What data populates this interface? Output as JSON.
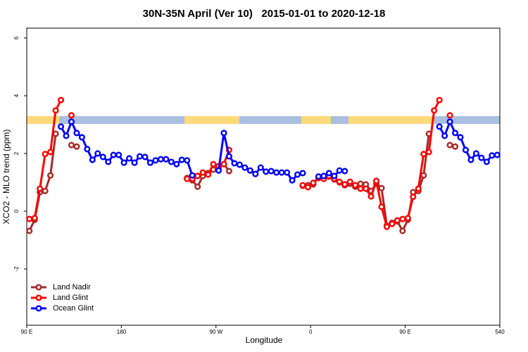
{
  "chart_data": {
    "type": "line",
    "title": "30N-35N April (Ver 10)   2015-01-01 to 2020-12-18",
    "xlabel": "Longitude",
    "ylabel": "XCO2 - MLO trend (ppm)",
    "xlim": [
      90,
      540
    ],
    "ylim": [
      -3.95,
      6.34
    ],
    "xticks": [
      {
        "value": 90,
        "label": "90 E"
      },
      180,
      {
        "value": 270,
        "label": "90 W"
      },
      {
        "value": 360,
        "label": "0"
      },
      {
        "value": 450,
        "label": "90 E"
      },
      540
    ],
    "yticks": [
      -2,
      0,
      2,
      4,
      6
    ],
    "legend": "bottom-left",
    "series": [
      {
        "name": "Land Nadir",
        "color": "#a52a2a",
        "x": [
          92.5,
          97.5,
          102.5,
          107.5,
          112.5,
          117.5,
          122.5,
          132.5,
          137.5,
          240,
          242.5,
          247.5,
          252.5,
          257.5,
          262.5,
          267.5,
          272.5,
          277.5,
          282.5,
          300,
          352.5,
          357.5,
          362.5,
          367.5,
          372.5,
          377.5,
          382.5,
          387.5,
          392.5,
          397.5,
          402.5,
          407.5,
          412.5,
          417.5,
          422.5,
          427.5,
          432.5,
          437.5,
          442.5,
          447.5,
          452.5,
          457.5,
          462.5,
          467.5,
          472.5,
          480,
          492.5,
          497.5
        ],
        "values": [
          -0.68,
          -0.3,
          0.66,
          0.7,
          1.24,
          2.68,
          null,
          2.29,
          2.24,
          null,
          1.15,
          1.07,
          0.85,
          1.22,
          1.32,
          1.44,
          1.51,
          1.63,
          1.39,
          null,
          0.88,
          0.9,
          0.93,
          1.2,
          1.15,
          1.2,
          1.1,
          1.0,
          0.9,
          0.95,
          0.85,
          0.95,
          0.93,
          0.7,
          0.95,
          0.8,
          -0.5,
          -0.4,
          -0.35,
          -0.68,
          -0.3,
          0.66,
          0.7,
          1.24,
          2.68,
          null,
          2.29,
          2.24
        ]
      },
      {
        "name": "Land Glint",
        "color": "#ff0000",
        "x": [
          92.5,
          97.5,
          102.5,
          107.5,
          112.5,
          117.5,
          122.5,
          127.5,
          132.5,
          240,
          242.5,
          247.5,
          252.5,
          257.5,
          262.5,
          267.5,
          272.5,
          277.5,
          282.5,
          300,
          352.5,
          357.5,
          362.5,
          367.5,
          372.5,
          377.5,
          382.5,
          387.5,
          392.5,
          397.5,
          402.5,
          407.5,
          412.5,
          417.5,
          422.5,
          427.5,
          432.5,
          437.5,
          442.5,
          447.5,
          452.5,
          457.5,
          462.5,
          467.5,
          472.5,
          477.5,
          482.5,
          487.5,
          492.5
        ],
        "values": [
          -0.27,
          -0.24,
          0.78,
          1.98,
          2.05,
          3.49,
          3.85,
          null,
          3.32,
          null,
          1.12,
          1.12,
          1.22,
          1.34,
          1.27,
          1.63,
          1.56,
          1.63,
          2.12,
          null,
          0.9,
          0.83,
          0.98,
          1.15,
          1.12,
          1.22,
          1.12,
          1.02,
          0.93,
          1.02,
          0.9,
          0.78,
          0.78,
          0.51,
          1.05,
          0.15,
          -0.54,
          -0.44,
          -0.32,
          -0.27,
          -0.24,
          0.5,
          0.78,
          1.98,
          2.05,
          3.49,
          3.85,
          null,
          3.32
        ]
      },
      {
        "name": "Ocean Glint",
        "color": "#0000ff",
        "x": [
          122.5,
          127.5,
          132.5,
          137.5,
          142.5,
          147.5,
          152.5,
          157.5,
          162.5,
          167.5,
          172.5,
          177.5,
          182.5,
          187.5,
          192.5,
          197.5,
          202.5,
          207.5,
          212.5,
          217.5,
          222.5,
          227.5,
          232.5,
          237.5,
          242.5,
          247.5,
          260,
          272.5,
          277.5,
          282.5,
          287.5,
          292.5,
          297.5,
          302.5,
          307.5,
          312.5,
          317.5,
          322.5,
          327.5,
          332.5,
          337.5,
          342.5,
          347.5,
          352.5,
          360,
          367.5,
          372.5,
          377.5,
          382.5,
          387.5,
          392.5,
          440,
          482.5,
          487.5,
          492.5,
          497.5,
          502.5,
          507.5,
          512.5,
          517.5,
          522.5,
          527.5,
          532.5,
          537.5
        ],
        "values": [
          2.93,
          2.61,
          3.1,
          2.71,
          2.56,
          2.15,
          1.78,
          2.0,
          1.88,
          1.71,
          1.95,
          1.95,
          1.68,
          1.83,
          1.68,
          1.9,
          1.88,
          1.68,
          1.76,
          1.8,
          1.8,
          1.71,
          1.63,
          1.78,
          1.76,
          1.24,
          null,
          1.41,
          2.71,
          1.9,
          1.66,
          1.61,
          1.51,
          1.41,
          1.29,
          1.51,
          1.37,
          1.39,
          1.34,
          1.34,
          1.34,
          1.07,
          1.27,
          1.32,
          null,
          1.2,
          1.22,
          1.32,
          1.22,
          1.41,
          1.39,
          null,
          2.93,
          2.61,
          3.1,
          2.71,
          2.56,
          2.12,
          1.78,
          2.0,
          1.85,
          1.71,
          1.93,
          1.95
        ]
      }
    ]
  }
}
